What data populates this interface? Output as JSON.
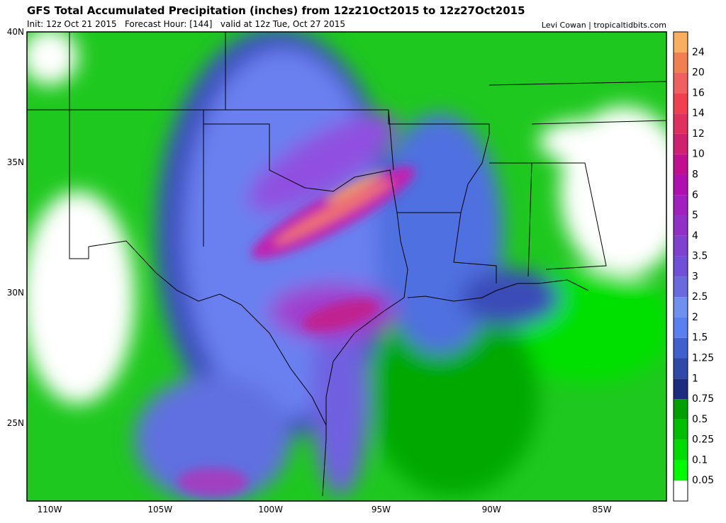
{
  "header": {
    "title": "GFS Total Accumulated Precipitation (inches) from 12z21Oct2015 to 12z27Oct2015",
    "subtitle": "Init: 12z Oct 21 2015   Forecast Hour: [144]   valid at 12z Tue, Oct 27 2015",
    "credit": "Levi Cowan | tropicaltidbits.com"
  },
  "map": {
    "lat_labels": [
      "40N",
      "35N",
      "30N",
      "25N"
    ],
    "lon_labels": [
      "110W",
      "105W",
      "100W",
      "95W",
      "90W",
      "85W"
    ]
  },
  "colorbar": {
    "levels": [
      0.05,
      0.1,
      0.25,
      0.5,
      0.75,
      1,
      1.25,
      1.5,
      2,
      2.5,
      3,
      3.5,
      4,
      5,
      6,
      8,
      10,
      12,
      14,
      16,
      20,
      24
    ],
    "colors": [
      "#ffffff",
      "#00fa00",
      "#00dc00",
      "#00be00",
      "#00a000",
      "#1e2c80",
      "#3048a8",
      "#4060d0",
      "#5a7ff0",
      "#7090f0",
      "#6a6adf",
      "#7050d8",
      "#8040d0",
      "#9030c8",
      "#a020c0",
      "#b010b0",
      "#c01090",
      "#d02070",
      "#e03060",
      "#f04050",
      "#f06060",
      "#f08050",
      "#f8b060"
    ]
  }
}
